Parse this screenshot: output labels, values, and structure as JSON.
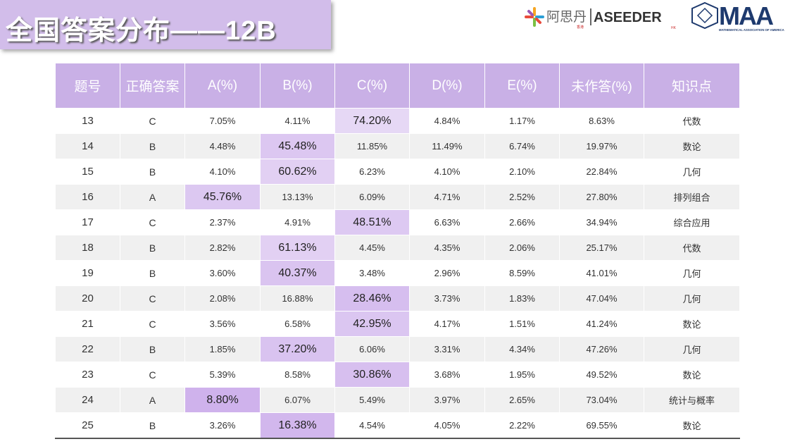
{
  "header": {
    "title": "全国答案分布——12B",
    "logo_cn": "阿思丹",
    "logo_cn_sub": "香港",
    "logo_en": "ASEEDER",
    "logo_en_sub": "HK",
    "logo_maa": "MAA",
    "logo_maa_sub": "MATHEMATICAL ASSOCIATION OF AMERICA"
  },
  "table": {
    "headers": [
      "题号",
      "正确答案",
      "A(%)",
      "B(%)",
      "C(%)",
      "D(%)",
      "E(%)",
      "未作答(%)",
      "知识点"
    ],
    "rows": [
      [
        "13",
        "C",
        "7.05%",
        "4.11%",
        "74.20%",
        "4.84%",
        "1.17%",
        "8.63%",
        "代数"
      ],
      [
        "14",
        "B",
        "4.48%",
        "45.48%",
        "11.85%",
        "11.49%",
        "6.74%",
        "19.97%",
        "数论"
      ],
      [
        "15",
        "B",
        "4.10%",
        "60.62%",
        "6.23%",
        "4.10%",
        "2.10%",
        "22.84%",
        "几何"
      ],
      [
        "16",
        "A",
        "45.76%",
        "13.13%",
        "6.09%",
        "4.71%",
        "2.52%",
        "27.80%",
        "排列组合"
      ],
      [
        "17",
        "C",
        "2.37%",
        "4.91%",
        "48.51%",
        "6.63%",
        "2.66%",
        "34.94%",
        "综合应用"
      ],
      [
        "18",
        "B",
        "2.82%",
        "61.13%",
        "4.45%",
        "4.35%",
        "2.06%",
        "25.17%",
        "代数"
      ],
      [
        "19",
        "B",
        "3.60%",
        "40.37%",
        "3.48%",
        "2.96%",
        "8.59%",
        "41.01%",
        "几何"
      ],
      [
        "20",
        "C",
        "2.08%",
        "16.88%",
        "28.46%",
        "3.73%",
        "1.83%",
        "47.04%",
        "几何"
      ],
      [
        "21",
        "C",
        "3.56%",
        "6.58%",
        "42.95%",
        "4.17%",
        "1.51%",
        "41.24%",
        "数论"
      ],
      [
        "22",
        "B",
        "1.85%",
        "37.20%",
        "6.06%",
        "3.31%",
        "4.34%",
        "47.26%",
        "几何"
      ],
      [
        "23",
        "C",
        "5.39%",
        "8.58%",
        "30.86%",
        "3.68%",
        "1.95%",
        "49.52%",
        "数论"
      ],
      [
        "24",
        "A",
        "8.80%",
        "6.07%",
        "5.49%",
        "3.97%",
        "2.65%",
        "73.04%",
        "统计与概率"
      ],
      [
        "25",
        "B",
        "3.26%",
        "16.38%",
        "4.54%",
        "4.05%",
        "2.22%",
        "69.55%",
        "数论"
      ]
    ]
  }
}
